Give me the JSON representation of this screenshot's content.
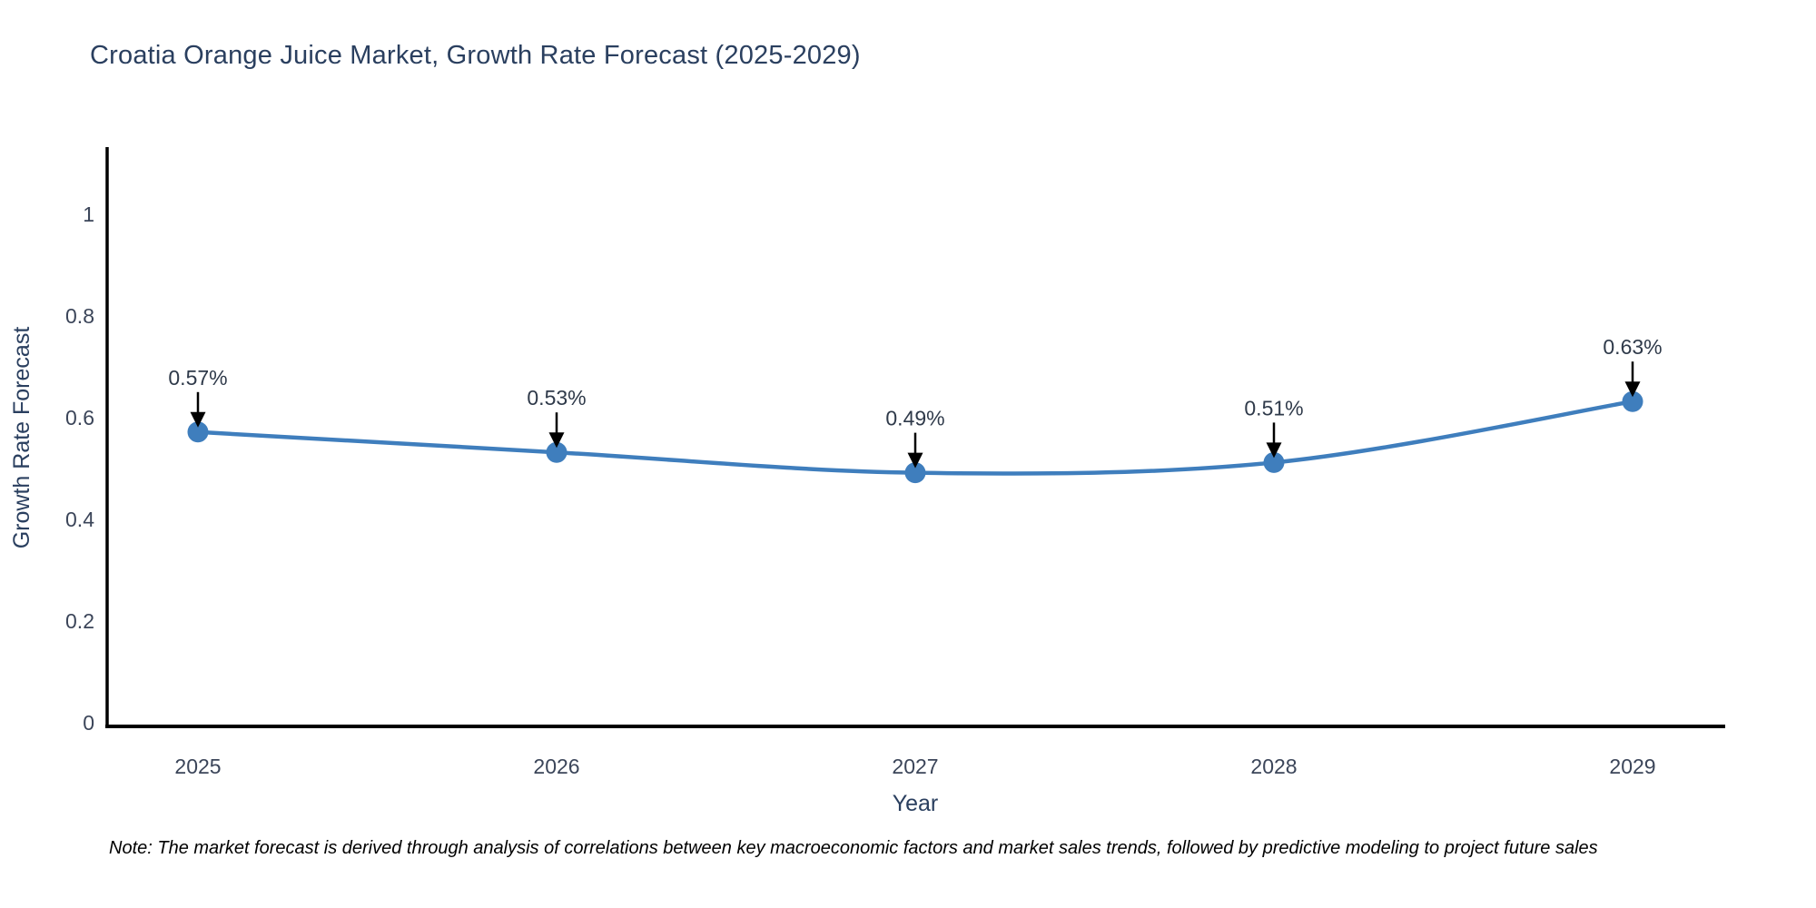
{
  "note": "Note: The market forecast is derived through analysis of correlations between key macroeconomic factors and market sales trends, followed by predictive modeling to project future sales",
  "chart_data": {
    "type": "line",
    "title": "Croatia Orange Juice Market, Growth Rate Forecast (2025-2029)",
    "xlabel": "Year",
    "ylabel": "Growth Rate Forecast",
    "x": [
      2025,
      2026,
      2027,
      2028,
      2029
    ],
    "xtick_labels": [
      "2025",
      "2026",
      "2027",
      "2028",
      "2029"
    ],
    "series": [
      {
        "name": "Growth Rate Forecast",
        "values": [
          0.57,
          0.53,
          0.49,
          0.51,
          0.63
        ]
      }
    ],
    "point_labels": [
      "0.57%",
      "0.53%",
      "0.49%",
      "0.51%",
      "0.63%"
    ],
    "yticks": [
      0,
      0.2,
      0.4,
      0.6,
      0.8,
      1
    ],
    "ytick_labels": [
      "0",
      "0.2",
      "0.4",
      "0.6",
      "0.8",
      "1"
    ],
    "ylim": [
      0,
      1.13
    ],
    "line_shape": "spline",
    "grid": false,
    "legend": "none",
    "annotation_style": "label-with-down-arrow",
    "colors": {
      "line": "#3f7ebd",
      "marker": "#3f7ebd",
      "arrow": "#000000",
      "axis": "#000000",
      "title_text": "#2a3f5f",
      "axis_text": "#3b4559",
      "annotation_text": "#2f3a4a",
      "note_text": "#000000",
      "background": "#ffffff"
    }
  }
}
